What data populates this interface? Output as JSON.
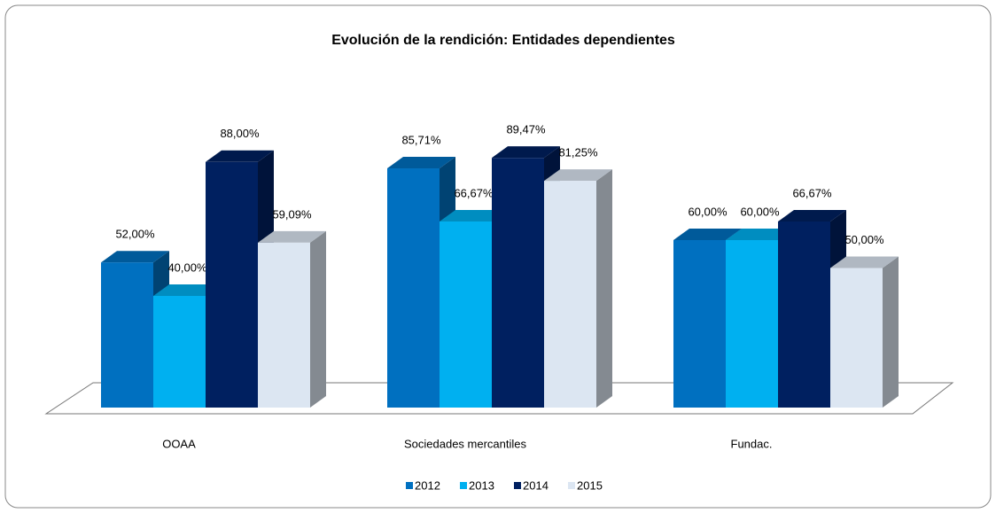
{
  "chart_data": {
    "type": "bar3d",
    "title": "Evolución de la rendición: Entidades dependientes",
    "categories": [
      "OOAA",
      "Sociedades mercantiles",
      "Fundac."
    ],
    "ylim": [
      0,
      100
    ],
    "legend": "bottom",
    "series": [
      {
        "name": "2012",
        "color": "#0070c0",
        "values": [
          52,
          85.71,
          60
        ],
        "value_labels": [
          "52,00%",
          "85,71%",
          "60,00%"
        ]
      },
      {
        "name": "2013",
        "color": "#00b0f0",
        "values": [
          40,
          66.67,
          60
        ],
        "value_labels": [
          "40,00%",
          "66,67%",
          "60,00%"
        ]
      },
      {
        "name": "2014",
        "color": "#002060",
        "values": [
          88,
          89.47,
          66.67
        ],
        "value_labels": [
          "88,00%",
          "89,47%",
          "66,67%"
        ]
      },
      {
        "name": "2015",
        "color": "#dce6f2",
        "values": [
          59.09,
          81.25,
          50
        ],
        "value_labels": [
          "59,09%",
          "81,25%",
          "50,00%"
        ]
      }
    ]
  }
}
